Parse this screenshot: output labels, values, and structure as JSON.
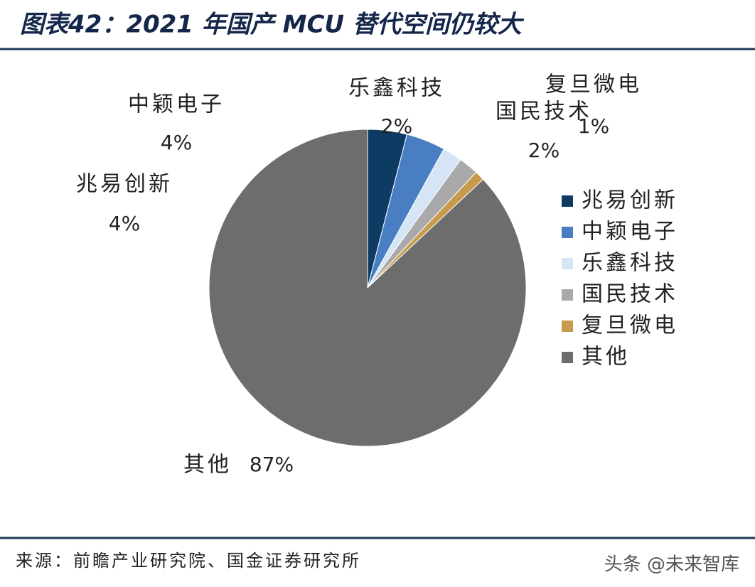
{
  "chart_data": {
    "type": "pie",
    "title": "图表42：2021 年国产 MCU 替代空间仍较大",
    "categories": [
      "兆易创新",
      "中颖电子",
      "乐鑫科技",
      "国民技术",
      "复旦微电",
      "其他"
    ],
    "values": [
      4,
      4,
      2,
      2,
      1,
      87
    ],
    "value_labels": [
      "4%",
      "4%",
      "2%",
      "2%",
      "1%",
      "87%"
    ],
    "colors": [
      "#0d3b63",
      "#4a7ec2",
      "#d5e5f5",
      "#a9a9a9",
      "#c69b4c",
      "#6d6d6d"
    ],
    "legend": "right",
    "source": "来源：前瞻产业研究院、国金证券研究所",
    "watermark": "头条 @未来智库"
  }
}
